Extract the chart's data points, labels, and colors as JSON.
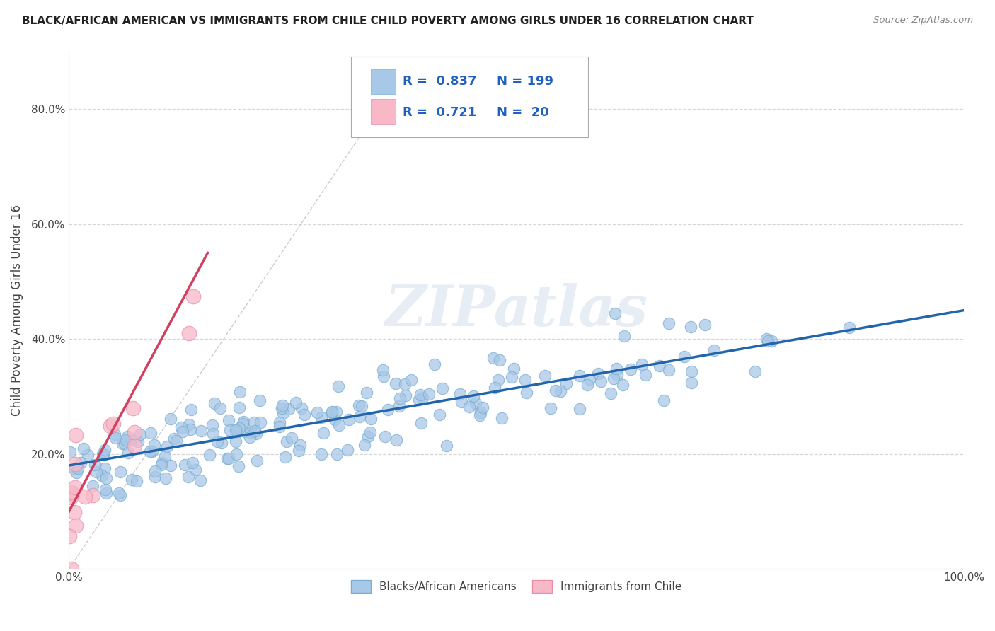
{
  "title": "BLACK/AFRICAN AMERICAN VS IMMIGRANTS FROM CHILE CHILD POVERTY AMONG GIRLS UNDER 16 CORRELATION CHART",
  "source": "Source: ZipAtlas.com",
  "ylabel": "Child Poverty Among Girls Under 16",
  "xlim": [
    0,
    1.0
  ],
  "ylim": [
    0,
    0.9
  ],
  "legend1_label": "Blacks/African Americans",
  "legend2_label": "Immigrants from Chile",
  "R1": 0.837,
  "N1": 199,
  "R2": 0.721,
  "N2": 20,
  "blue_color": "#a8c8e8",
  "blue_edge_color": "#7aaed0",
  "pink_color": "#f8b8c8",
  "pink_edge_color": "#e890a8",
  "blue_line_color": "#2166ac",
  "pink_line_color": "#d04060",
  "diag_color": "#cccccc",
  "watermark": "ZIPatlas",
  "background_color": "#ffffff",
  "grid_color": "#cccccc",
  "text_color": "#444444",
  "legend_text_color": "#2060c0",
  "title_color": "#222222",
  "source_color": "#888888"
}
